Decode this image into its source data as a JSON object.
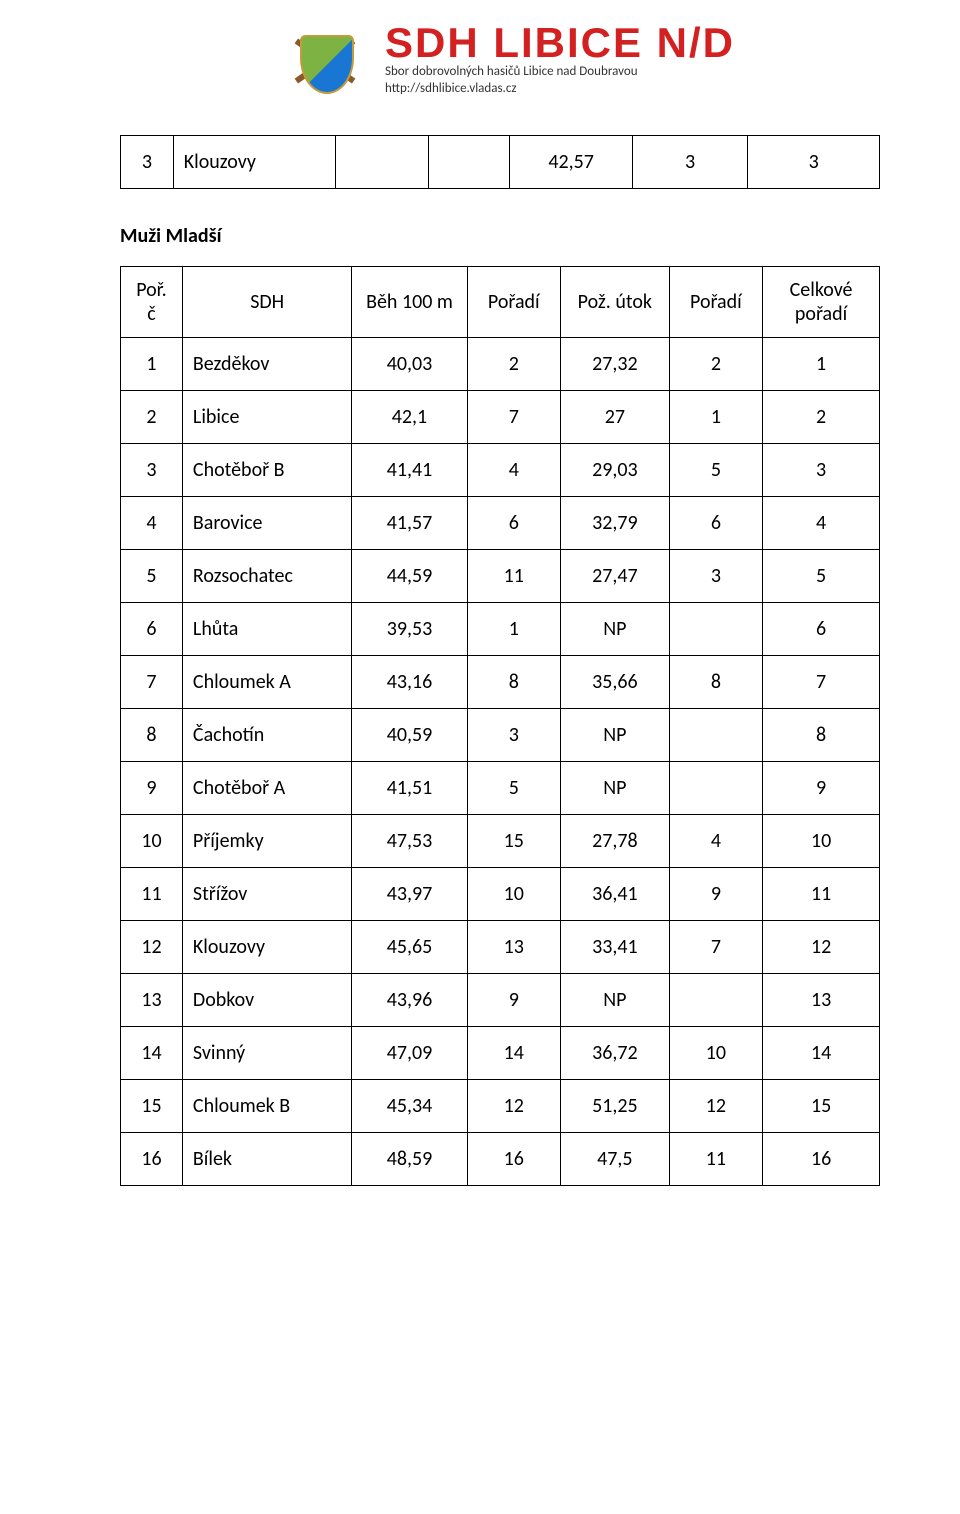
{
  "header": {
    "title": "SDH LIBICE N/D",
    "sub1": "Sbor dobrovolných hasičů Libice nad Doubravou",
    "sub2": "http://sdhlibice.vladas.cz"
  },
  "top_table": {
    "rows": [
      {
        "num": "3",
        "name": "Klouzovy",
        "val": "42,57",
        "p1": "3",
        "p2": "3"
      }
    ]
  },
  "section_title": "Muži Mladší",
  "main_table": {
    "headers": {
      "porc_l1": "Poř.",
      "porc_l2": "č",
      "sdh": "SDH",
      "beh": "Běh 100 m",
      "por1": "Pořadí",
      "utok": "Pož. útok",
      "por2": "Pořadí",
      "celk_l1": "Celkové",
      "celk_l2": "pořadí"
    },
    "rows": [
      {
        "num": "1",
        "name": "Bezděkov",
        "beh": "40,03",
        "p1": "2",
        "utok": "27,32",
        "p2": "2",
        "celk": "1"
      },
      {
        "num": "2",
        "name": "Libice",
        "beh": "42,1",
        "p1": "7",
        "utok": "27",
        "p2": "1",
        "celk": "2"
      },
      {
        "num": "3",
        "name": "Chotěboř B",
        "beh": "41,41",
        "p1": "4",
        "utok": "29,03",
        "p2": "5",
        "celk": "3"
      },
      {
        "num": "4",
        "name": "Barovice",
        "beh": "41,57",
        "p1": "6",
        "utok": "32,79",
        "p2": "6",
        "celk": "4"
      },
      {
        "num": "5",
        "name": "Rozsochatec",
        "beh": "44,59",
        "p1": "11",
        "utok": "27,47",
        "p2": "3",
        "celk": "5"
      },
      {
        "num": "6",
        "name": "Lhůta",
        "beh": "39,53",
        "p1": "1",
        "utok": "NP",
        "p2": "",
        "celk": "6"
      },
      {
        "num": "7",
        "name": "Chloumek A",
        "beh": "43,16",
        "p1": "8",
        "utok": "35,66",
        "p2": "8",
        "celk": "7"
      },
      {
        "num": "8",
        "name": "Čachotín",
        "beh": "40,59",
        "p1": "3",
        "utok": "NP",
        "p2": "",
        "celk": "8"
      },
      {
        "num": "9",
        "name": "Chotěboř A",
        "beh": "41,51",
        "p1": "5",
        "utok": "NP",
        "p2": "",
        "celk": "9"
      },
      {
        "num": "10",
        "name": "Příjemky",
        "beh": "47,53",
        "p1": "15",
        "utok": "27,78",
        "p2": "4",
        "celk": "10"
      },
      {
        "num": "11",
        "name": "Střížov",
        "beh": "43,97",
        "p1": "10",
        "utok": "36,41",
        "p2": "9",
        "celk": "11"
      },
      {
        "num": "12",
        "name": "Klouzovy",
        "beh": "45,65",
        "p1": "13",
        "utok": "33,41",
        "p2": "7",
        "celk": "12"
      },
      {
        "num": "13",
        "name": "Dobkov",
        "beh": "43,96",
        "p1": "9",
        "utok": "NP",
        "p2": "",
        "celk": "13"
      },
      {
        "num": "14",
        "name": "Svinný",
        "beh": "47,09",
        "p1": "14",
        "utok": "36,72",
        "p2": "10",
        "celk": "14"
      },
      {
        "num": "15",
        "name": "Chloumek B",
        "beh": "45,34",
        "p1": "12",
        "utok": "51,25",
        "p2": "12",
        "celk": "15"
      },
      {
        "num": "16",
        "name": "Bílek",
        "beh": "48,59",
        "p1": "16",
        "utok": "47,5",
        "p2": "11",
        "celk": "16"
      }
    ]
  }
}
